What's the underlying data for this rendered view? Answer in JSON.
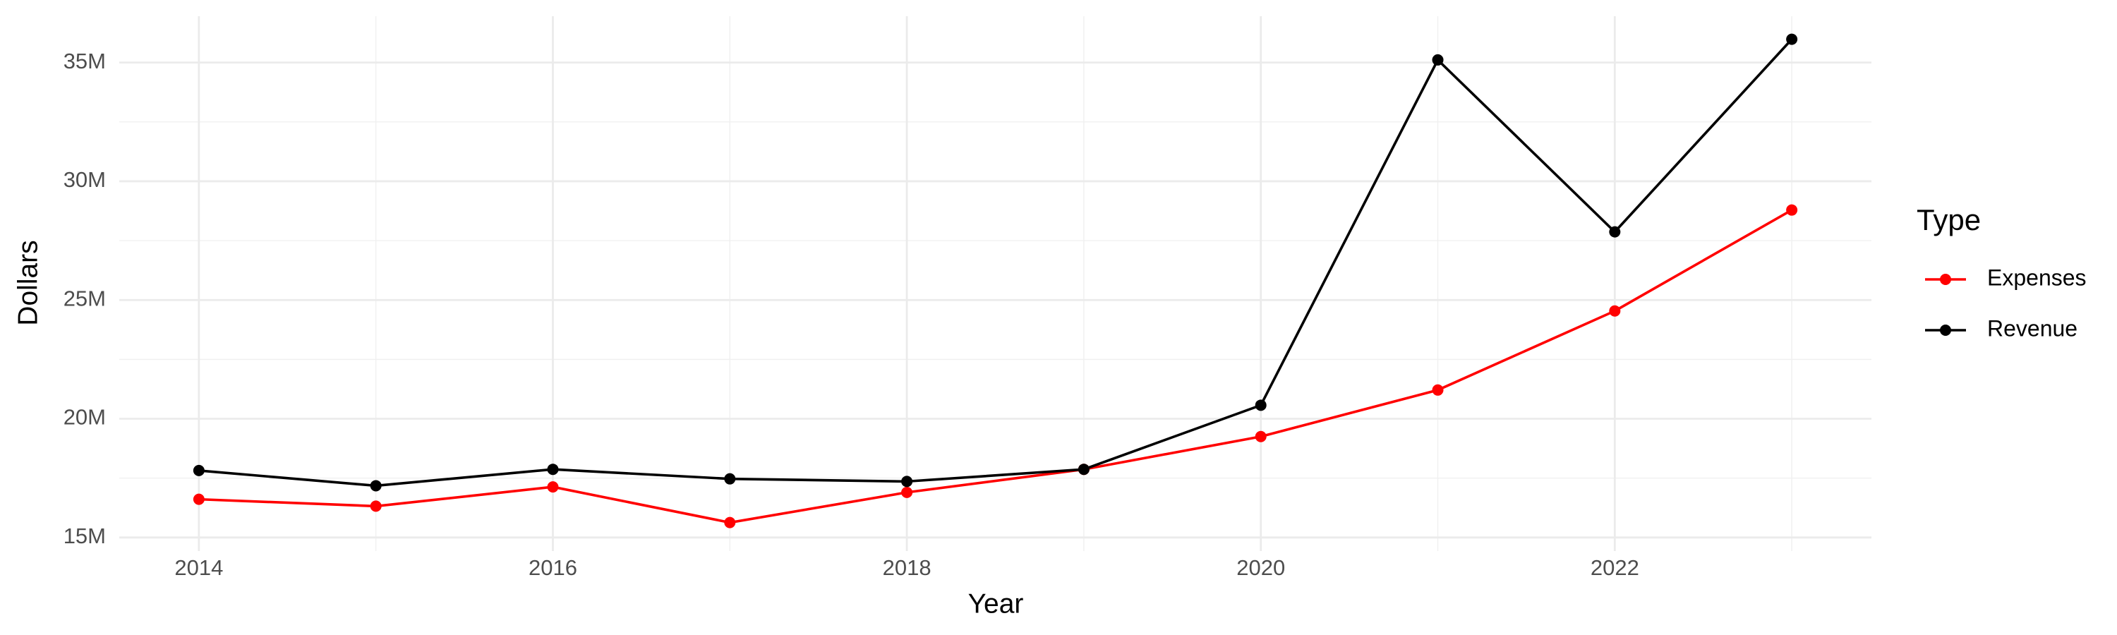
{
  "chart_data": {
    "type": "line",
    "x_label": "Year",
    "y_label": "Dollars",
    "x": [
      2014,
      2015,
      2016,
      2017,
      2018,
      2019,
      2020,
      2021,
      2022,
      2023
    ],
    "series": [
      {
        "name": "Expenses",
        "color": "#ff0000",
        "values": [
          16610000,
          16320000,
          17130000,
          15630000,
          16900000,
          17870000,
          19250000,
          21210000,
          24540000,
          28790000
        ]
      },
      {
        "name": "Revenue",
        "color": "#000000",
        "values": [
          17820000,
          17180000,
          17870000,
          17470000,
          17360000,
          17870000,
          20570000,
          35110000,
          27870000,
          35980000
        ]
      }
    ],
    "xlim": [
      2013.55,
      2023.45
    ],
    "xticks": [
      2014,
      2016,
      2018,
      2020,
      2022
    ],
    "xminor": [
      2015,
      2017,
      2019,
      2021,
      2023
    ],
    "ylim": [
      14430000,
      36950000
    ],
    "yticks": [
      {
        "value": 15000000,
        "label": "15M"
      },
      {
        "value": 20000000,
        "label": "20M"
      },
      {
        "value": 25000000,
        "label": "25M"
      },
      {
        "value": 30000000,
        "label": "30M"
      },
      {
        "value": 35000000,
        "label": "35M"
      }
    ],
    "yminor": [
      17500000,
      22500000,
      27500000,
      32500000
    ],
    "grid": true,
    "legend_title": "Type",
    "legend_position": "right"
  }
}
